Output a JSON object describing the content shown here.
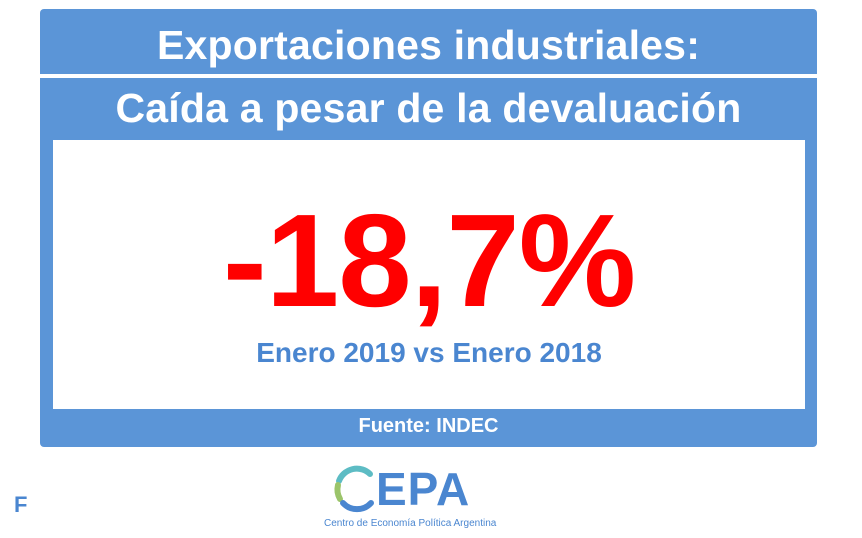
{
  "card": {
    "title_line1": "Exportaciones industriales:",
    "title_line2": "Caída a pesar de la devaluación",
    "value": "-18,7%",
    "comparison": "Enero 2019 vs Enero 2018",
    "source": "Fuente: INDEC"
  },
  "logo": {
    "wordmark": "EPA",
    "subtitle": "Centro de Economía Política Argentina",
    "icon": "cepa-c-logo-icon"
  },
  "corner_label": "F",
  "colors": {
    "card_blue": "#5b95d7",
    "value_red": "#ff0000",
    "text_blue": "#4a86d0",
    "logo_teal": "#5dbcc4",
    "logo_green": "#9bc46a"
  }
}
